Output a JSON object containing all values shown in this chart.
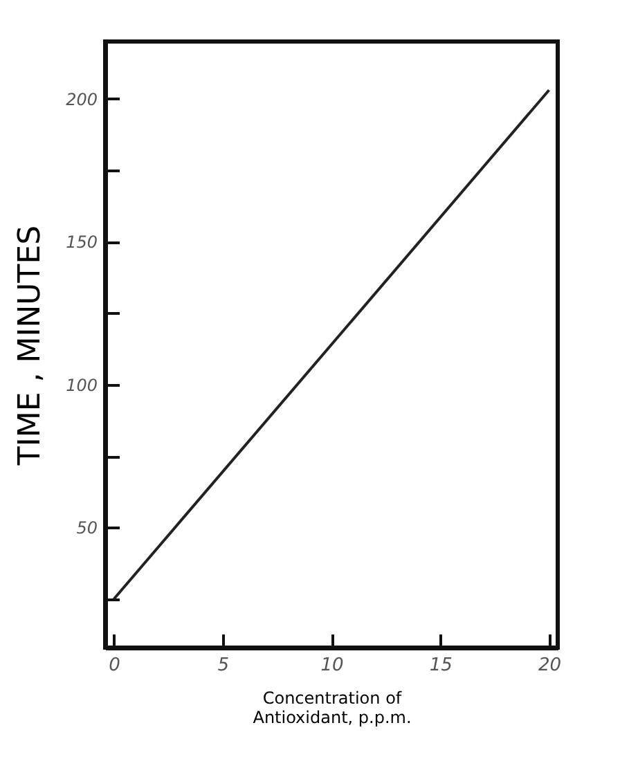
{
  "chart_data": {
    "type": "line",
    "xlabel": "Concentration of\nAntioxidant, p.p.m.",
    "ylabel": "TIME , MINUTES",
    "x": [
      0,
      20
    ],
    "series": [
      {
        "color": "#222222",
        "values": [
          25,
          203
        ]
      }
    ],
    "xlim": [
      -0.4,
      20.4
    ],
    "xticks": [
      0,
      5,
      10,
      15,
      20
    ],
    "ylim": [
      8,
      220
    ],
    "yticks": [
      {
        "value": 25,
        "label": null
      },
      50,
      {
        "value": 75,
        "label": null
      },
      100,
      {
        "value": 125,
        "label": null
      },
      150,
      {
        "value": 175,
        "label": null
      },
      200
    ],
    "grid": false,
    "marker": "none",
    "line_style": "solid"
  }
}
